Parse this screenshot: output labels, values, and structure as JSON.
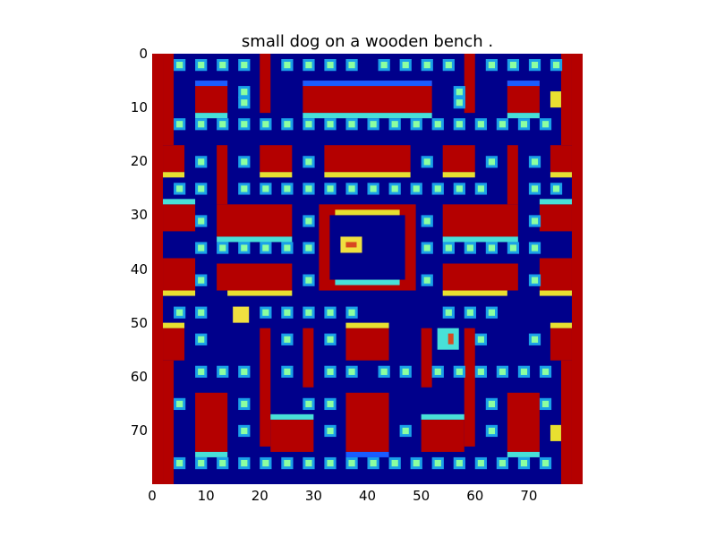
{
  "title": "small dog on a wooden bench .",
  "colors": {
    "background": "#00008b",
    "wall": "#b40000",
    "wall_edge_light": "#48e0d8",
    "wall_edge_yellow": "#e8e030",
    "wall_edge_blue": "#1a5cff",
    "pellet_outer": "#1aa0e8",
    "pellet_inner": "#8cffa0",
    "ghost": "#f0e040",
    "ghost_eye": "#d84820"
  },
  "axes": {
    "x_ticks": [
      "0",
      "10",
      "20",
      "30",
      "40",
      "50",
      "60",
      "70"
    ],
    "y_ticks": [
      "0",
      "10",
      "20",
      "30",
      "40",
      "50",
      "60",
      "70"
    ],
    "x_range": [
      0,
      80
    ],
    "y_range": [
      0,
      80
    ],
    "colormap": "jet"
  }
}
